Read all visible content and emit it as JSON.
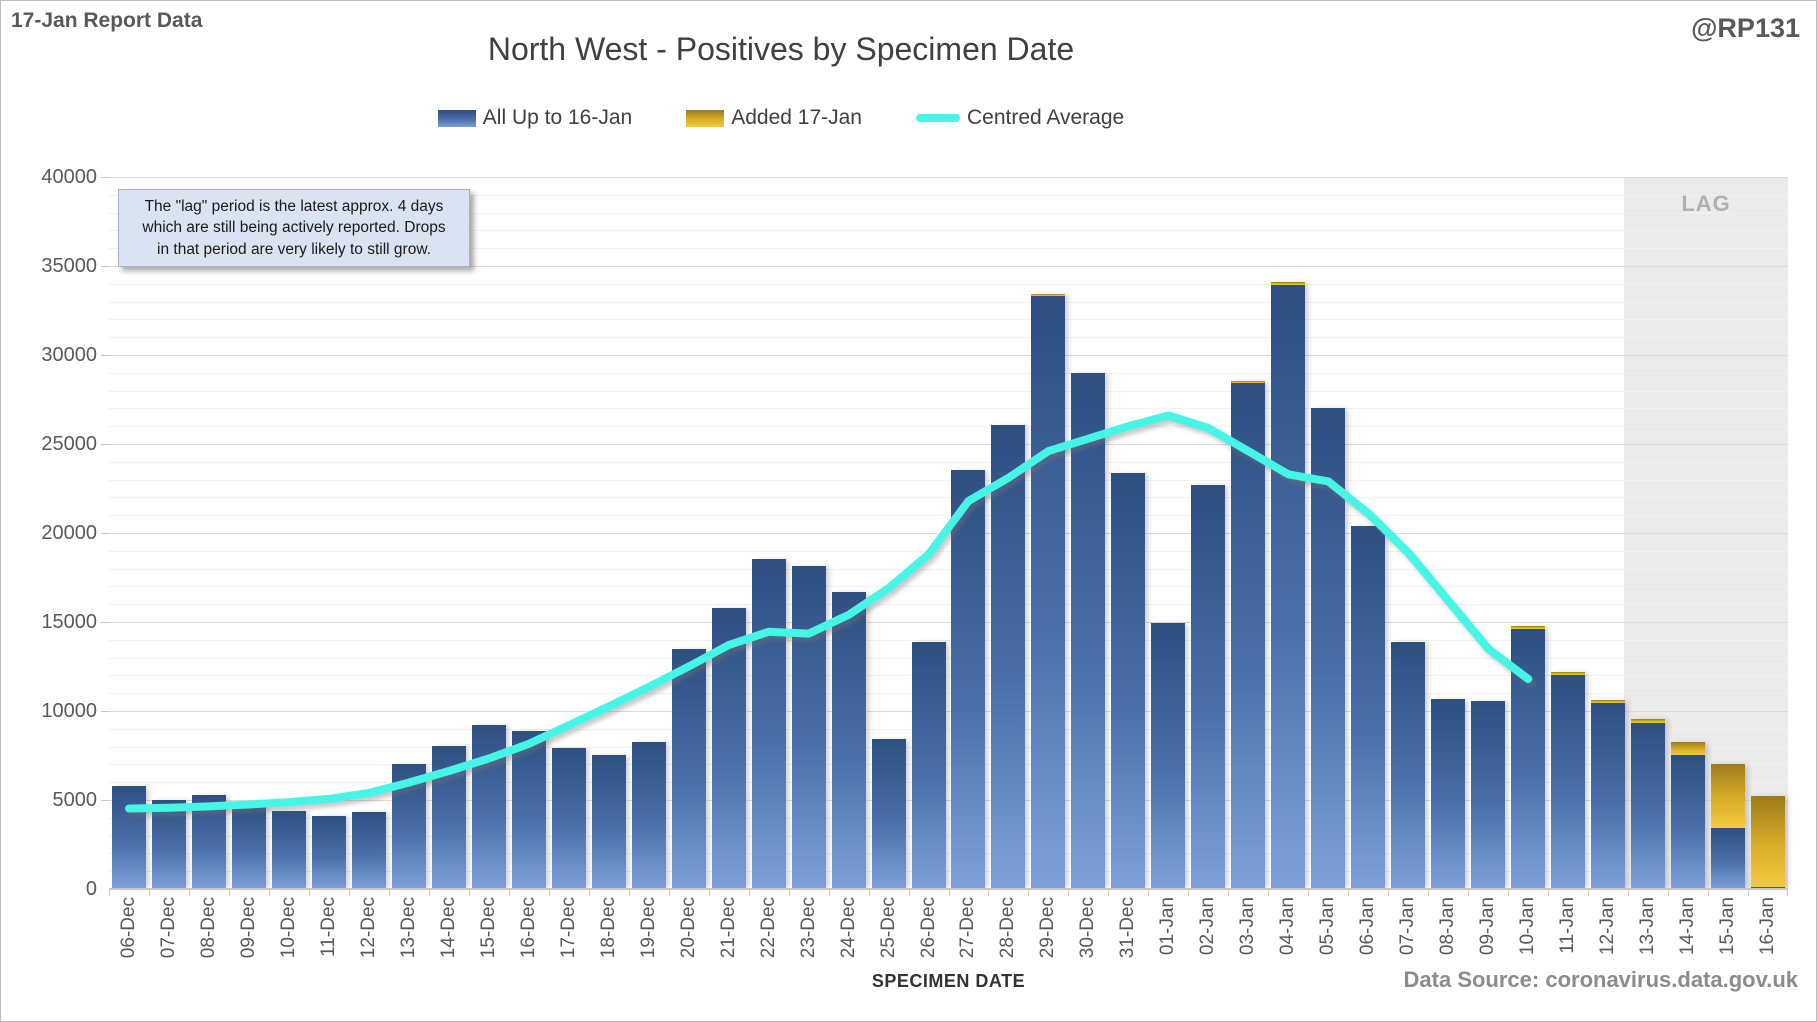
{
  "header": {
    "report_label": "17-Jan Report Data",
    "handle": "@RP131",
    "title": "North West - Positives by Specimen Date"
  },
  "legend": {
    "items": [
      {
        "label": "All Up to 16-Jan",
        "swatch": "blue-bar-swatch"
      },
      {
        "label": "Added 17-Jan",
        "swatch": "gold-bar-swatch"
      },
      {
        "label": "Centred Average",
        "swatch": "cyan-line-swatch"
      }
    ]
  },
  "annotation": {
    "lines": [
      "The \"lag\" period is the latest approx. 4 days",
      "which are still being actively reported.  Drops",
      "in that period are very likely to still grow."
    ]
  },
  "lag": {
    "label": "LAG",
    "start_category": "13-Jan"
  },
  "axes": {
    "y": {
      "min": 0,
      "max": 40000,
      "major_step": 5000,
      "minor_step": 1000
    },
    "x": {
      "title": "SPECIMEN DATE"
    }
  },
  "footer": {
    "data_source": "Data Source: coronavirus.data.gov.uk"
  },
  "colors": {
    "bar-blue-top": "#2e4f80",
    "bar-blue-mid": "#4a6ea8",
    "bar-blue-bottom": "#7da1d8",
    "bar-gold-top": "#9c7b1a",
    "bar-gold-mid": "#d9ad28",
    "bar-gold-bottom": "#f2ca40",
    "avg-line": "#45f5e5",
    "lag-fill": "#ebebeb",
    "lag-text": "#b0b0b0",
    "grid-minor": "#f1f1f1",
    "grid-major": "#dadada",
    "axis-line": "#c6c6c6",
    "text-dark": "#404040",
    "text-gray": "#595959",
    "source-gray": "#8c8c8c",
    "annotation-fill": "#dae3f1",
    "annotation-border": "#a8b2c2"
  },
  "chart_data": {
    "type": "bar",
    "title": "North West - Positives by Specimen Date",
    "xlabel": "SPECIMEN DATE",
    "ylabel": "",
    "ylim": [
      0,
      40000
    ],
    "grid": "minor horizontal every 1000, major every 5000",
    "legend_position": "top",
    "lag_region_start": "13-Jan",
    "categories": [
      "06-Dec",
      "07-Dec",
      "08-Dec",
      "09-Dec",
      "10-Dec",
      "11-Dec",
      "12-Dec",
      "13-Dec",
      "14-Dec",
      "15-Dec",
      "16-Dec",
      "17-Dec",
      "18-Dec",
      "19-Dec",
      "20-Dec",
      "21-Dec",
      "22-Dec",
      "23-Dec",
      "24-Dec",
      "25-Dec",
      "26-Dec",
      "27-Dec",
      "28-Dec",
      "29-Dec",
      "30-Dec",
      "31-Dec",
      "01-Jan",
      "02-Jan",
      "03-Jan",
      "04-Jan",
      "05-Jan",
      "06-Jan",
      "07-Jan",
      "08-Jan",
      "09-Jan",
      "10-Jan",
      "11-Jan",
      "12-Jan",
      "13-Jan",
      "14-Jan",
      "15-Jan",
      "16-Jan"
    ],
    "series": [
      {
        "name": "All Up to 16-Jan",
        "type": "bar-stacked-base",
        "values": [
          5800,
          5000,
          5300,
          4800,
          4400,
          4100,
          4300,
          7050,
          8050,
          9200,
          8850,
          7900,
          7550,
          8250,
          13500,
          15800,
          18550,
          18150,
          16700,
          8450,
          13900,
          23550,
          26050,
          33300,
          29000,
          23350,
          14950,
          22700,
          28400,
          33950,
          27050,
          20400,
          13850,
          10650,
          10550,
          14600,
          12050,
          10450,
          9350,
          7550,
          3400,
          100
        ]
      },
      {
        "name": "Added 17-Jan",
        "type": "bar-stacked-top",
        "values": [
          0,
          0,
          0,
          0,
          0,
          0,
          0,
          0,
          0,
          0,
          0,
          0,
          0,
          0,
          0,
          0,
          0,
          0,
          0,
          0,
          0,
          0,
          0,
          150,
          0,
          0,
          0,
          0,
          150,
          150,
          0,
          0,
          0,
          0,
          0,
          150,
          150,
          150,
          200,
          700,
          3600,
          5100
        ]
      },
      {
        "name": "Centred Average",
        "type": "line",
        "values": [
          4520,
          4570,
          4640,
          4750,
          4880,
          5060,
          5400,
          5980,
          6630,
          7330,
          8150,
          9200,
          10250,
          11350,
          12500,
          13700,
          14450,
          14350,
          15400,
          16900,
          18800,
          21800,
          23100,
          24600,
          25300,
          26000,
          26600,
          25900,
          24600,
          23300,
          22900,
          21100,
          18900,
          16200,
          13500,
          11800,
          null,
          null,
          null,
          null,
          null,
          null
        ]
      }
    ]
  }
}
